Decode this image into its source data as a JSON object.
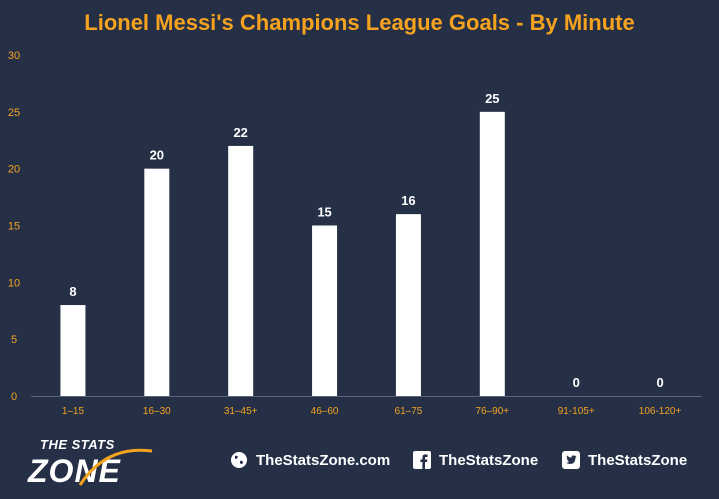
{
  "chart_data": {
    "type": "bar",
    "title": "Lionel Messi's Champions League Goals - By Minute",
    "categories": [
      "1–15",
      "16–30",
      "31–45+",
      "46–60",
      "61–75",
      "76–90+",
      "91-105+",
      "106-120+"
    ],
    "values": [
      8,
      20,
      22,
      15,
      16,
      25,
      0,
      0
    ],
    "yticks": [
      0,
      5,
      10,
      15,
      20,
      25,
      30
    ],
    "ylim": [
      0,
      30
    ],
    "grid": false,
    "colors": {
      "background": "#253047",
      "bar": "#ffffff",
      "title": "#f5a21f",
      "tick_labels": "#f5a21f",
      "data_labels": "#ffffff",
      "axis": "#5a6478"
    }
  },
  "footer": {
    "logo_small": "THE STATS",
    "logo_big": "ZONE",
    "website": "TheStatsZone.com",
    "facebook": "TheStatsZone",
    "twitter": "TheStatsZone",
    "icons": [
      "globe-icon",
      "facebook-icon",
      "twitter-icon"
    ]
  }
}
